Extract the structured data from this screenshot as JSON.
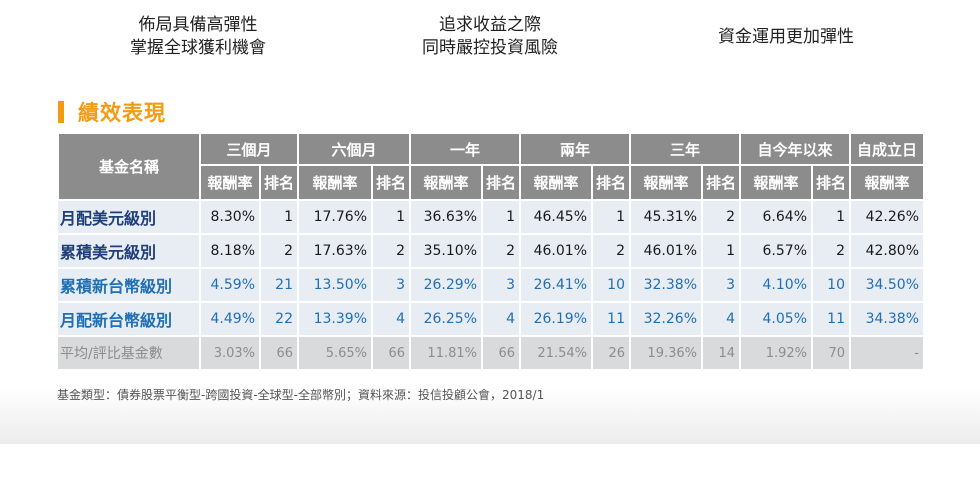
{
  "features": [
    {
      "line1": "佈局具備高彈性",
      "line2": "掌握全球獲利機會"
    },
    {
      "line1": "追求收益之際",
      "line2": "同時嚴控投資風險"
    },
    {
      "line1": "資金運用更加彈性"
    }
  ],
  "section_title": "績效表現",
  "table": {
    "name_header": "基金名稱",
    "periods": [
      "三個月",
      "六個月",
      "一年",
      "兩年",
      "三年",
      "自今年以來",
      "自成立日"
    ],
    "return_label": "報酬率",
    "rank_label": "排名",
    "rows": [
      {
        "name": "月配美元級別",
        "cells": [
          "8.30%",
          "1",
          "17.76%",
          "1",
          "36.63%",
          "1",
          "46.45%",
          "1",
          "45.31%",
          "2",
          "6.64%",
          "1",
          "42.26%"
        ]
      },
      {
        "name": "累積美元級別",
        "cells": [
          "8.18%",
          "2",
          "17.63%",
          "2",
          "35.10%",
          "2",
          "46.01%",
          "2",
          "46.01%",
          "1",
          "6.57%",
          "2",
          "42.80%"
        ]
      },
      {
        "name": "累積新台幣級別",
        "cells": [
          "4.59%",
          "21",
          "13.50%",
          "3",
          "26.29%",
          "3",
          "26.41%",
          "10",
          "32.38%",
          "3",
          "4.10%",
          "10",
          "34.50%"
        ]
      },
      {
        "name": "月配新台幣級別",
        "cells": [
          "4.49%",
          "22",
          "13.39%",
          "4",
          "26.25%",
          "4",
          "26.19%",
          "11",
          "32.26%",
          "4",
          "4.05%",
          "11",
          "34.38%"
        ]
      }
    ],
    "avg_row": {
      "name": "平均/評比基金數",
      "cells": [
        "3.03%",
        "66",
        "5.65%",
        "66",
        "11.81%",
        "66",
        "21.54%",
        "26",
        "19.36%",
        "14",
        "1.92%",
        "70",
        "-"
      ]
    }
  },
  "footnote": "基金類型：債券股票平衡型-跨國投資-全球型-全部幣別；資料來源：投信投顧公會，2018/1"
}
